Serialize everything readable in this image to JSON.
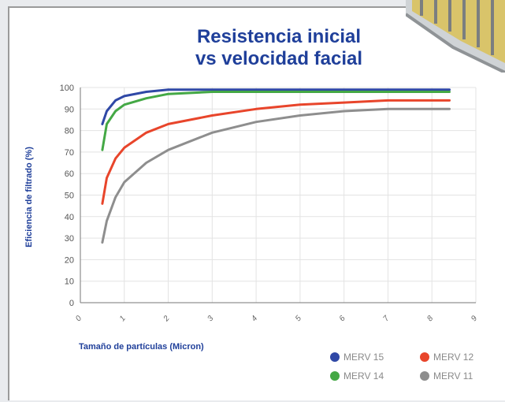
{
  "chart_data": {
    "type": "line",
    "title_lines": [
      "Resistencia inicial",
      "vs velocidad facial"
    ],
    "xlabel": "Tamaño de partículas (Micron)",
    "ylabel": "Eficiencia de filtrado (%)",
    "xlim": [
      0,
      9
    ],
    "ylim": [
      0,
      100
    ],
    "y_ticks": [
      0,
      10,
      20,
      30,
      40,
      50,
      60,
      70,
      80,
      90,
      100
    ],
    "x_tick_labels": [
      "0",
      "1",
      "2",
      "3",
      "4",
      "5",
      "6",
      "7",
      "8",
      "9"
    ],
    "grid": true,
    "legend_position": "bottom-right",
    "series": [
      {
        "name": "MERV 15",
        "color": "#2f48a6",
        "x": [
          0.5,
          0.6,
          0.8,
          1.0,
          1.5,
          2.0,
          3.0,
          4.0,
          5.0,
          6.0,
          7.0,
          8.0,
          8.4
        ],
        "y": [
          83,
          89,
          94,
          96,
          98,
          99,
          99,
          99,
          99,
          99,
          99,
          99,
          99
        ]
      },
      {
        "name": "MERV 14",
        "color": "#44a845",
        "x": [
          0.5,
          0.6,
          0.8,
          1.0,
          1.5,
          2.0,
          3.0,
          4.0,
          5.0,
          6.0,
          7.0,
          8.0,
          8.4
        ],
        "y": [
          71,
          83,
          89,
          92,
          95,
          97,
          98,
          98,
          98,
          98,
          98,
          98,
          98
        ]
      },
      {
        "name": "MERV 12",
        "color": "#e8452b",
        "x": [
          0.5,
          0.6,
          0.8,
          1.0,
          1.5,
          2.0,
          3.0,
          4.0,
          5.0,
          6.0,
          7.0,
          8.0,
          8.4
        ],
        "y": [
          46,
          58,
          67,
          72,
          79,
          83,
          87,
          90,
          92,
          93,
          94,
          94,
          94
        ]
      },
      {
        "name": "MERV 11",
        "color": "#8e8e8e",
        "x": [
          0.5,
          0.6,
          0.8,
          1.0,
          1.5,
          2.0,
          3.0,
          4.0,
          5.0,
          6.0,
          7.0,
          8.0,
          8.4
        ],
        "y": [
          28,
          38,
          49,
          56,
          65,
          71,
          79,
          84,
          87,
          89,
          90,
          90,
          90
        ]
      }
    ]
  }
}
